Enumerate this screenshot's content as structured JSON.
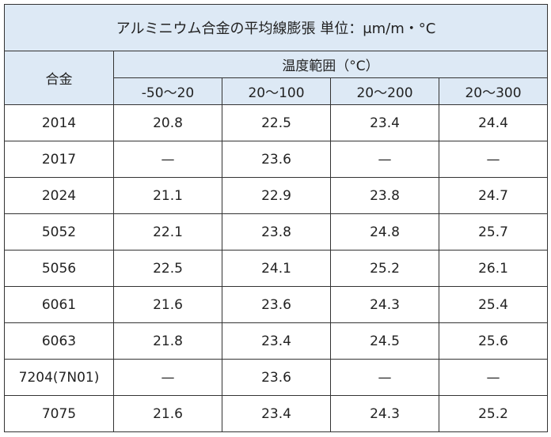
{
  "header": {
    "title": "アルミニウム合金の平均線膨張 単位：μm/m・°C"
  },
  "table": {
    "corner": "合金",
    "group": "温度範囲（°C）",
    "columns": [
      "-50〜20",
      "20〜100",
      "20〜200",
      "20〜300"
    ],
    "rows": [
      [
        "2014",
        "20.8",
        "22.5",
        "23.4",
        "24.4"
      ],
      [
        "2017",
        "—",
        "23.6",
        "—",
        "—"
      ],
      [
        "2024",
        "21.1",
        "22.9",
        "23.8",
        "24.7"
      ],
      [
        "5052",
        "22.1",
        "23.8",
        "24.8",
        "25.7"
      ],
      [
        "5056",
        "22.5",
        "24.1",
        "25.2",
        "26.1"
      ],
      [
        "6061",
        "21.6",
        "23.6",
        "24.3",
        "25.4"
      ],
      [
        "6063",
        "21.8",
        "23.4",
        "24.5",
        "25.6"
      ],
      [
        "7204(7N01)",
        "—",
        "23.6",
        "—",
        "—"
      ],
      [
        "7075",
        "21.6",
        "23.4",
        "24.3",
        "25.2"
      ]
    ]
  }
}
